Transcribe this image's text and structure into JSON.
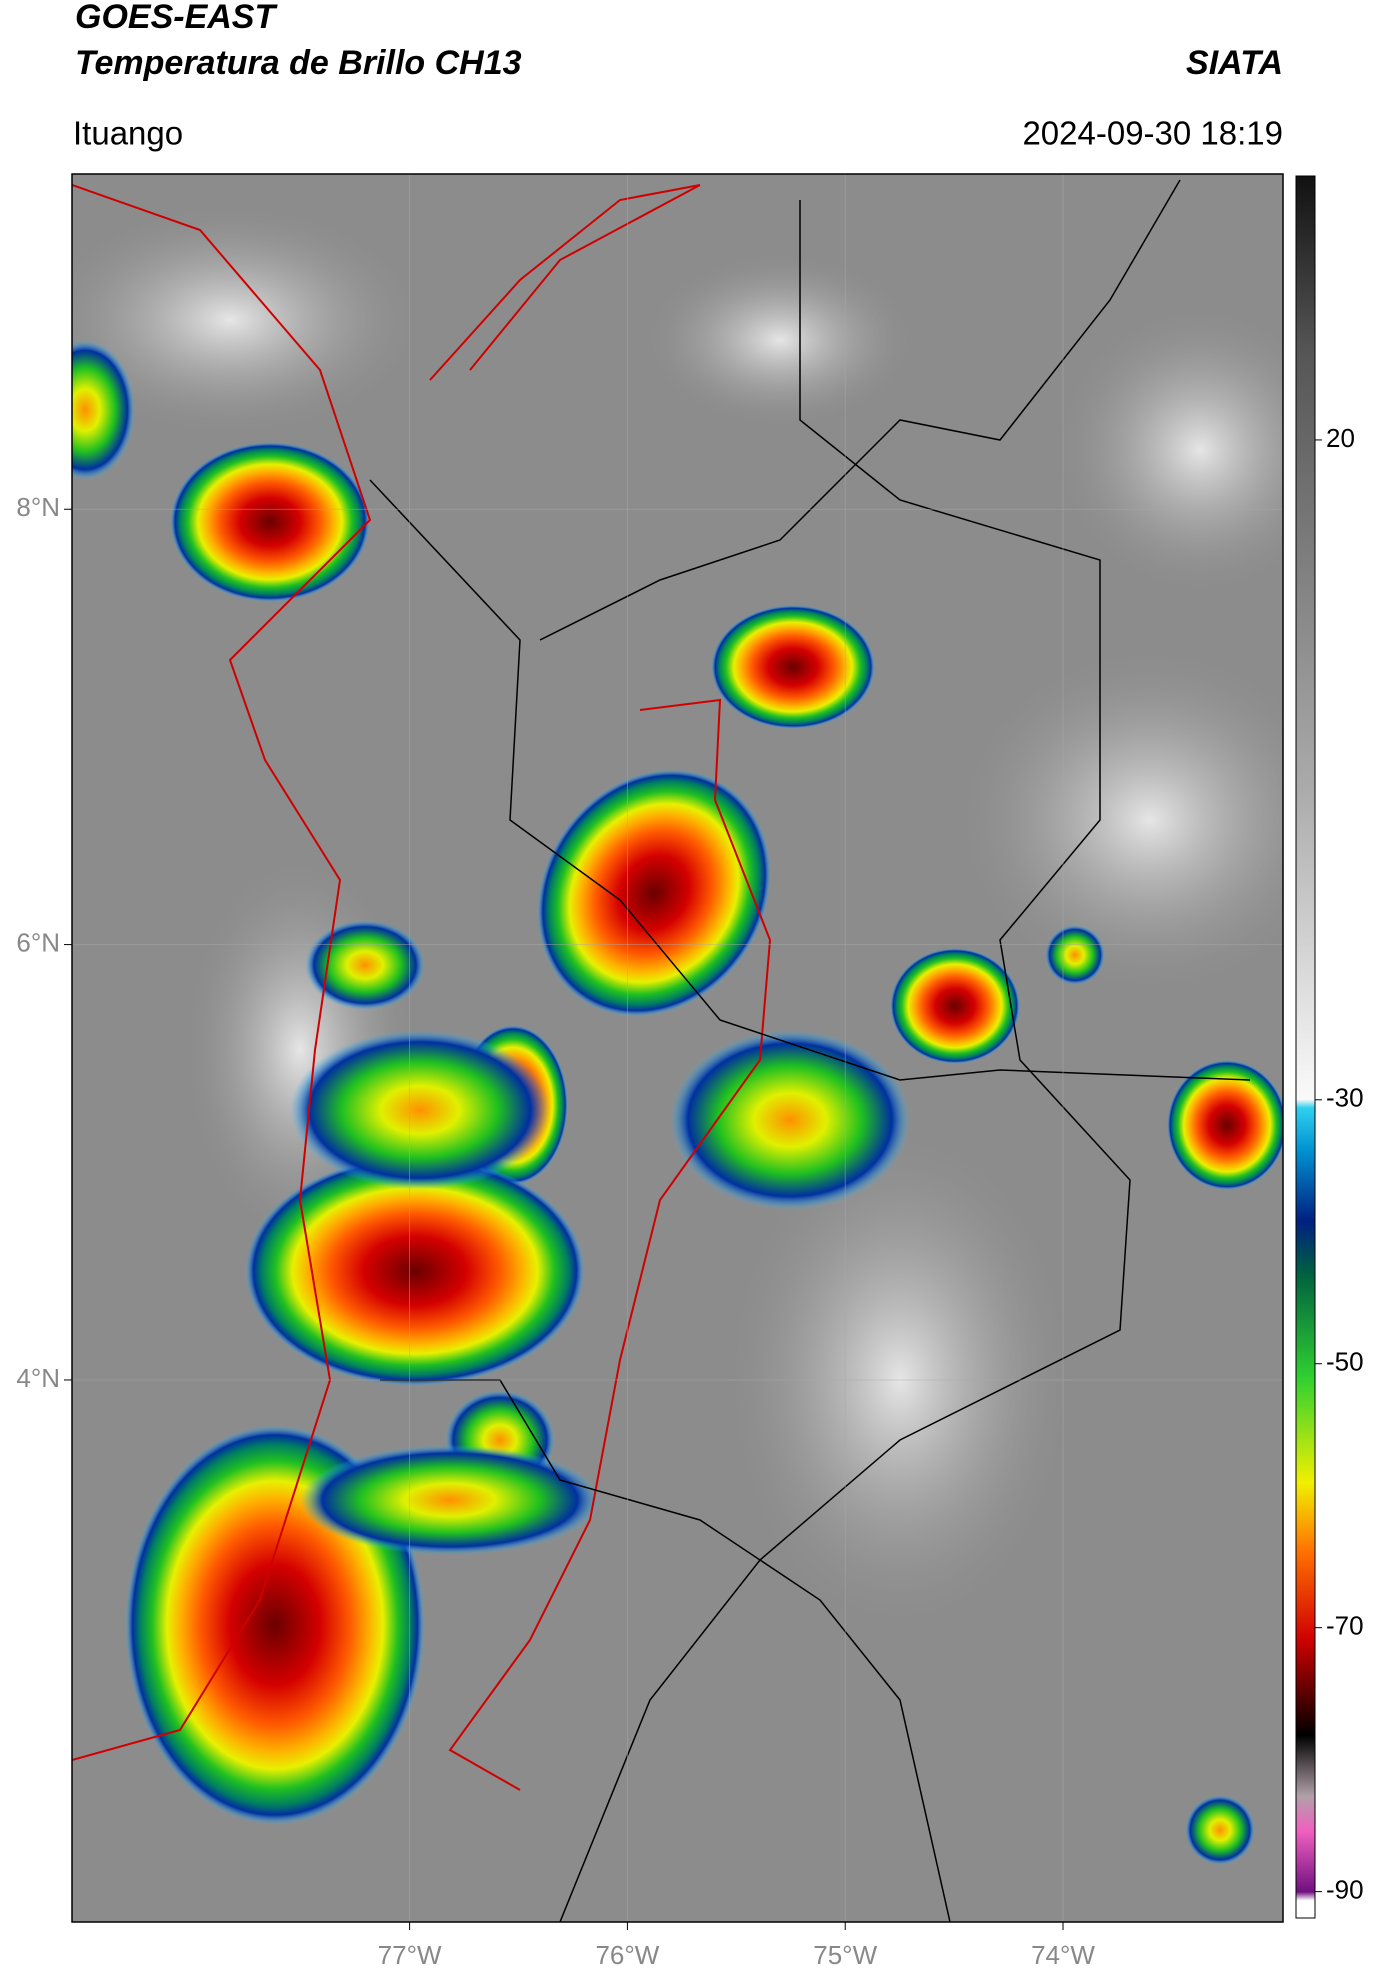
{
  "header": {
    "title": "GOES-EAST",
    "subtitle": "Temperatura de Brillo CH13",
    "source": "SIATA",
    "location": "Ituango",
    "timestamp": "2024-09-30 18:19"
  },
  "map": {
    "xlim": [
      -78.55,
      -72.99
    ],
    "ylim": [
      1.51,
      9.54
    ],
    "xticks": [
      {
        "value": -77,
        "label": "77°W"
      },
      {
        "value": -76,
        "label": "76°W"
      },
      {
        "value": -75,
        "label": "75°W"
      },
      {
        "value": -74,
        "label": "74°W"
      }
    ],
    "yticks": [
      {
        "value": 8,
        "label": "8°N"
      },
      {
        "value": 6,
        "label": "6°N"
      },
      {
        "value": 4,
        "label": "4°N"
      }
    ],
    "grid": true
  },
  "colorbar": {
    "lim": [
      -92,
      40
    ],
    "ticks": [
      20,
      -30,
      -50,
      -70,
      -90
    ]
  }
}
